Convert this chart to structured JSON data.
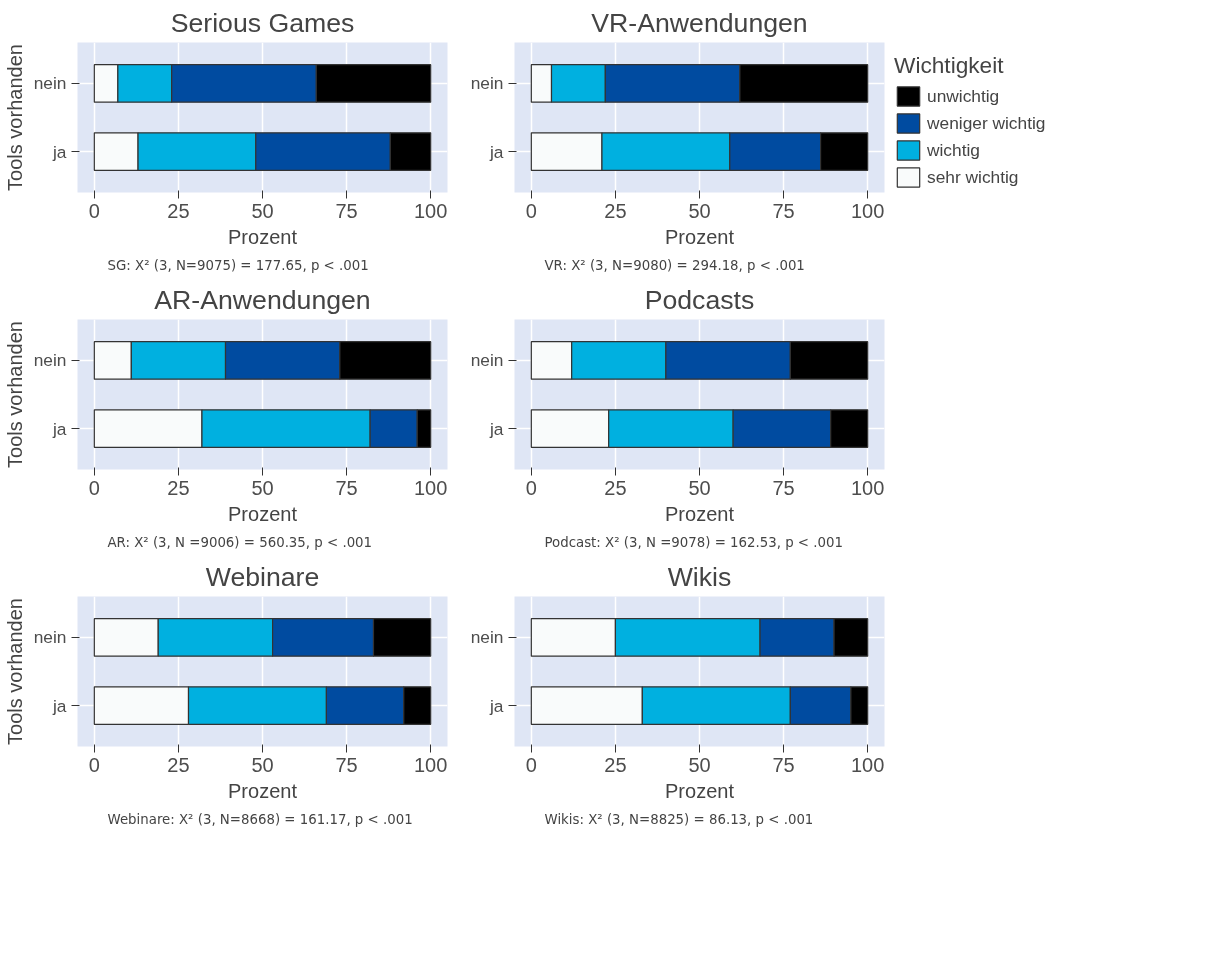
{
  "chart_data": [
    {
      "type": "bar",
      "orientation": "horizontal",
      "stacked": true,
      "title": "Serious Games",
      "xlabel": "Prozent",
      "ylabel": "Tools vorhanden",
      "categories": [
        "nein",
        "ja"
      ],
      "xlim": [
        -5,
        105
      ],
      "xticks": [
        0,
        25,
        50,
        75,
        100
      ],
      "grid": true,
      "legend": false,
      "annotations": [
        "SG: X² (3, N=9075) = 177.65, p < .001"
      ],
      "series": [
        {
          "color": "#f9fbfb",
          "values": [
            7,
            13
          ]
        },
        {
          "color": "#00b0e0",
          "values": [
            16,
            35
          ]
        },
        {
          "color": "#004ba0",
          "values": [
            43,
            40
          ]
        },
        {
          "color": "#000000",
          "values": [
            34,
            12
          ]
        }
      ]
    },
    {
      "type": "bar",
      "orientation": "horizontal",
      "stacked": true,
      "title": "VR-Anwendungen",
      "xlabel": "Prozent",
      "legend_title": "Wichtigkeit",
      "categories": [
        "nein",
        "ja"
      ],
      "xlim": [
        -5,
        105
      ],
      "xticks": [
        0,
        25,
        50,
        75,
        100
      ],
      "grid": true,
      "legend": "right",
      "annotations": [
        "VR: X² (3, N=9080) = 294.18, p < .001"
      ],
      "series": [
        {
          "name": "sehr wichtig",
          "color": "#f9fbfb",
          "values": [
            6,
            21
          ]
        },
        {
          "name": "wichtig",
          "color": "#00b0e0",
          "values": [
            16,
            38
          ]
        },
        {
          "name": "weniger wichtig",
          "color": "#004ba0",
          "values": [
            40,
            27
          ]
        },
        {
          "name": "unwichtig",
          "color": "#000000",
          "values": [
            38,
            14
          ]
        }
      ]
    },
    {
      "type": "bar",
      "orientation": "horizontal",
      "stacked": true,
      "title": "AR-Anwendungen",
      "xlabel": "Prozent",
      "ylabel": "Tools vorhanden",
      "categories": [
        "nein",
        "ja"
      ],
      "xlim": [
        -5,
        105
      ],
      "xticks": [
        0,
        25,
        50,
        75,
        100
      ],
      "grid": true,
      "legend": false,
      "annotations": [
        "AR: X² (3, N =9006) = 560.35, p < .001"
      ],
      "series": [
        {
          "color": "#f9fbfb",
          "values": [
            11,
            32
          ]
        },
        {
          "color": "#00b0e0",
          "values": [
            28,
            50
          ]
        },
        {
          "color": "#004ba0",
          "values": [
            34,
            14
          ]
        },
        {
          "color": "#000000",
          "values": [
            27,
            4
          ]
        }
      ]
    },
    {
      "type": "bar",
      "orientation": "horizontal",
      "stacked": true,
      "title": "Podcasts",
      "xlabel": "Prozent",
      "categories": [
        "nein",
        "ja"
      ],
      "xlim": [
        -5,
        105
      ],
      "xticks": [
        0,
        25,
        50,
        75,
        100
      ],
      "grid": true,
      "legend": false,
      "annotations": [
        "Podcast: X² (3, N =9078) = 162.53, p < .001"
      ],
      "series": [
        {
          "color": "#f9fbfb",
          "values": [
            12,
            23
          ]
        },
        {
          "color": "#00b0e0",
          "values": [
            28,
            37
          ]
        },
        {
          "color": "#004ba0",
          "values": [
            37,
            29
          ]
        },
        {
          "color": "#000000",
          "values": [
            23,
            11
          ]
        }
      ]
    },
    {
      "type": "bar",
      "orientation": "horizontal",
      "stacked": true,
      "title": "Webinare",
      "xlabel": "Prozent",
      "ylabel": "Tools vorhanden",
      "categories": [
        "nein",
        "ja"
      ],
      "xlim": [
        -5,
        105
      ],
      "xticks": [
        0,
        25,
        50,
        75,
        100
      ],
      "grid": true,
      "legend": false,
      "annotations": [
        "Webinare: X² (3, N=8668) = 161.17, p < .001"
      ],
      "series": [
        {
          "color": "#f9fbfb",
          "values": [
            19,
            28
          ]
        },
        {
          "color": "#00b0e0",
          "values": [
            34,
            41
          ]
        },
        {
          "color": "#004ba0",
          "values": [
            30,
            23
          ]
        },
        {
          "color": "#000000",
          "values": [
            17,
            8
          ]
        }
      ]
    },
    {
      "type": "bar",
      "orientation": "horizontal",
      "stacked": true,
      "title": "Wikis",
      "xlabel": "Prozent",
      "categories": [
        "nein",
        "ja"
      ],
      "xlim": [
        -5,
        105
      ],
      "xticks": [
        0,
        25,
        50,
        75,
        100
      ],
      "grid": true,
      "legend": false,
      "annotations": [
        "Wikis: X² (3, N=8825) = 86.13, p < .001"
      ],
      "series": [
        {
          "color": "#f9fbfb",
          "values": [
            25,
            33
          ]
        },
        {
          "color": "#00b0e0",
          "values": [
            43,
            44
          ]
        },
        {
          "color": "#004ba0",
          "values": [
            22,
            18
          ]
        },
        {
          "color": "#000000",
          "values": [
            10,
            5
          ]
        }
      ]
    }
  ]
}
